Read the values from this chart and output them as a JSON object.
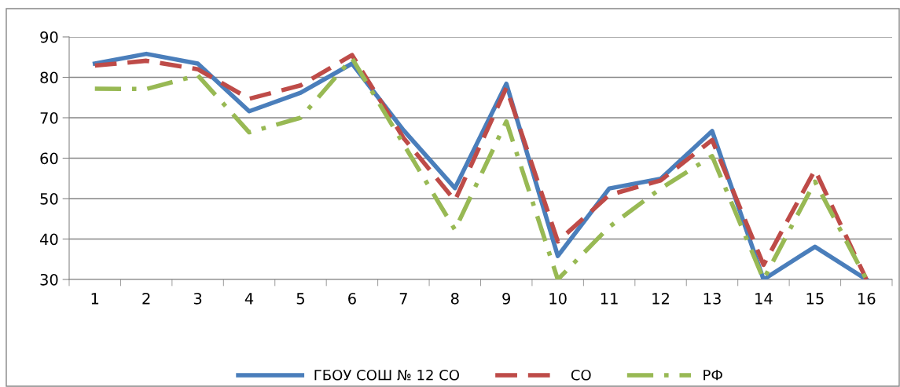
{
  "chart_data": {
    "type": "line",
    "categories": [
      "1",
      "2",
      "3",
      "4",
      "5",
      "6",
      "7",
      "8",
      "9",
      "10",
      "11",
      "12",
      "13",
      "14",
      "15",
      "16"
    ],
    "series": [
      {
        "name": "ГБОУ СОШ № 12 СО",
        "color": "#4a7ebb",
        "line_style": "solid",
        "values": [
          83.4,
          85.8,
          83.4,
          71.6,
          76.2,
          83.4,
          66.9,
          52.6,
          78.4,
          35.8,
          52.5,
          54.9,
          66.7,
          30,
          38.1,
          30
        ]
      },
      {
        "name": "СО",
        "color": "#be4b48",
        "line_style": "dashed",
        "values": [
          82.9,
          84.1,
          82,
          74.7,
          78,
          85.5,
          65,
          49.5,
          77.4,
          39.4,
          50.9,
          54.5,
          64.5,
          33.6,
          57.1,
          30
        ]
      },
      {
        "name": "РФ",
        "color": "#98b954",
        "line_style": "dashdot",
        "values": [
          77.2,
          77.1,
          80.5,
          66.4,
          70,
          84.7,
          63.5,
          42.3,
          69.1,
          30,
          43,
          52.5,
          60.5,
          30,
          54.2,
          30
        ]
      }
    ],
    "ylim": [
      30,
      90
    ],
    "yticks": [
      30,
      40,
      50,
      60,
      70,
      80,
      90
    ],
    "grid": "y",
    "legend": "bottom",
    "marker": "none"
  }
}
